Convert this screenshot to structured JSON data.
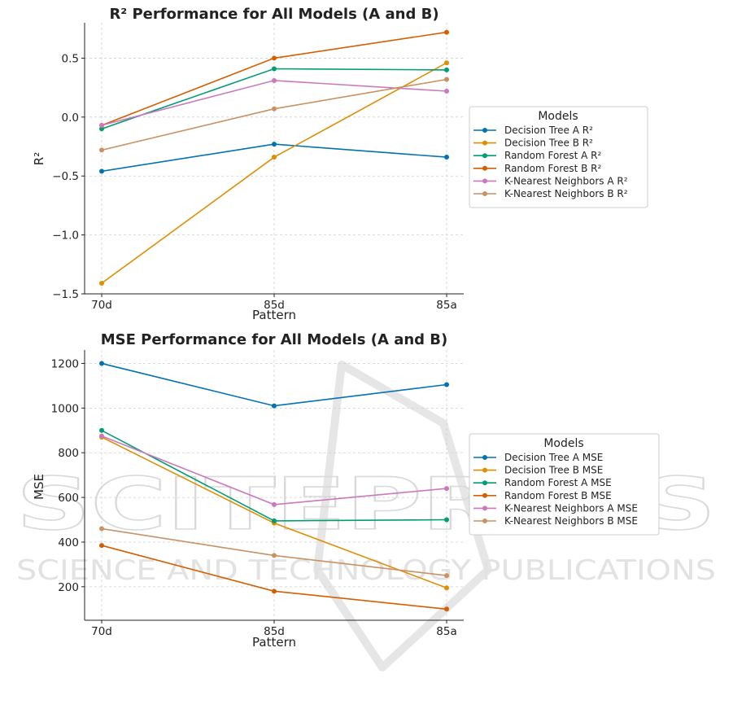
{
  "watermark": {
    "main": "SCITEPRESS",
    "sub": "SCIENCE AND TECHNOLOGY PUBLICATIONS"
  },
  "chart_data": [
    {
      "type": "line",
      "title": "R² Performance for All Models (A and B)",
      "xlabel": "Pattern",
      "ylabel": "R²",
      "categories": [
        "70d",
        "85d",
        "85a"
      ],
      "ylim": [
        -1.5,
        0.8
      ],
      "yticks": [
        -1.5,
        -1.0,
        -0.5,
        0.0,
        0.5
      ],
      "ytick_labels": [
        "−1.5",
        "−1.0",
        "−0.5",
        "0.0",
        "0.5"
      ],
      "grid": true,
      "legend_title": "Models",
      "legend_position": "right",
      "series": [
        {
          "name": "Decision Tree A R²",
          "color": "#0173b2",
          "values": [
            -0.46,
            -0.23,
            -0.34
          ]
        },
        {
          "name": "Decision Tree B R²",
          "color": "#de8f05",
          "values": [
            -1.41,
            -0.34,
            0.46
          ]
        },
        {
          "name": "Random Forest A R²",
          "color": "#029e73",
          "values": [
            -0.1,
            0.41,
            0.4
          ]
        },
        {
          "name": "Random Forest B R²",
          "color": "#d55e00",
          "values": [
            -0.07,
            0.5,
            0.72
          ]
        },
        {
          "name": "K-Nearest Neighbors A R²",
          "color": "#cc78bc",
          "values": [
            -0.07,
            0.31,
            0.22
          ]
        },
        {
          "name": "K-Nearest Neighbors B R²",
          "color": "#ca9161",
          "values": [
            -0.28,
            0.07,
            0.32
          ]
        }
      ]
    },
    {
      "type": "line",
      "title": "MSE Performance for All Models (A and B)",
      "xlabel": "Pattern",
      "ylabel": "MSE",
      "categories": [
        "70d",
        "85d",
        "85a"
      ],
      "ylim": [
        50,
        1260
      ],
      "yticks": [
        200,
        400,
        600,
        800,
        1000,
        1200
      ],
      "ytick_labels": [
        "200",
        "400",
        "600",
        "800",
        "1000",
        "1200"
      ],
      "grid": true,
      "legend_title": "Models",
      "legend_position": "right",
      "series": [
        {
          "name": "Decision Tree A MSE",
          "color": "#0173b2",
          "values": [
            1200,
            1010,
            1105
          ]
        },
        {
          "name": "Decision Tree B MSE",
          "color": "#de8f05",
          "values": [
            870,
            485,
            195
          ]
        },
        {
          "name": "Random Forest A MSE",
          "color": "#029e73",
          "values": [
            900,
            495,
            500
          ]
        },
        {
          "name": "Random Forest B MSE",
          "color": "#d55e00",
          "values": [
            385,
            180,
            100
          ]
        },
        {
          "name": "K-Nearest Neighbors A MSE",
          "color": "#cc78bc",
          "values": [
            875,
            568,
            640
          ]
        },
        {
          "name": "K-Nearest Neighbors B MSE",
          "color": "#ca9161",
          "values": [
            460,
            340,
            250
          ]
        }
      ]
    }
  ]
}
